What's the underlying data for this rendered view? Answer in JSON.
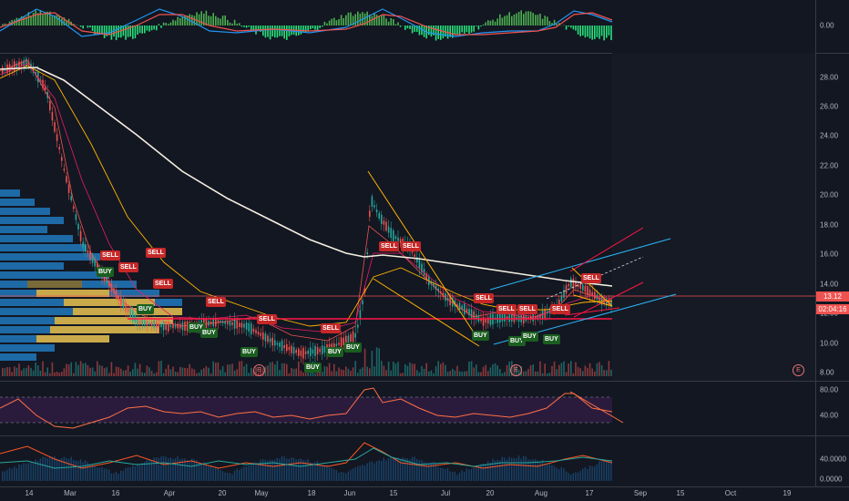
{
  "macd_pane": {
    "axis_label": "0.00"
  },
  "price_pane": {
    "y_ticks": [
      "28.00",
      "26.00",
      "24.00",
      "22.00",
      "20.00",
      "18.00",
      "16.00",
      "14.00",
      "12.00",
      "10.00",
      "8.00"
    ],
    "last_price": "13.12",
    "countdown": "02:04:16",
    "earnings_marker": "E"
  },
  "rsi_pane": {
    "y_ticks": [
      "80.00",
      "40.00"
    ]
  },
  "adx_pane": {
    "y_ticks": [
      "40.0000",
      "0.0000"
    ]
  },
  "x_axis": [
    "14",
    "Mar",
    "16",
    "Apr",
    "20",
    "May",
    "18",
    "Jun",
    "15",
    "Jul",
    "20",
    "Aug",
    "17",
    "Sep",
    "15",
    "Oct",
    "19"
  ],
  "signals": [
    {
      "type": "sell",
      "label": "SELL"
    },
    {
      "type": "buy",
      "label": "BUY"
    },
    {
      "type": "sell",
      "label": "SELL"
    },
    {
      "type": "sell",
      "label": "SELL"
    },
    {
      "type": "buy",
      "label": "BUY"
    },
    {
      "type": "sell",
      "label": "SELL"
    },
    {
      "type": "sell",
      "label": "SELL"
    },
    {
      "type": "buy",
      "label": "BUY"
    },
    {
      "type": "sell",
      "label": "SELL"
    },
    {
      "type": "buy",
      "label": "BUY"
    },
    {
      "type": "buy",
      "label": "BUY"
    },
    {
      "type": "sell",
      "label": "SELL"
    },
    {
      "type": "buy",
      "label": "BUY"
    },
    {
      "type": "buy",
      "label": "BUY"
    },
    {
      "type": "buy",
      "label": "BUY"
    },
    {
      "type": "sell",
      "label": "SELL"
    },
    {
      "type": "sell",
      "label": "SELL"
    },
    {
      "type": "buy",
      "label": "BUY"
    },
    {
      "type": "sell",
      "label": "SELL"
    },
    {
      "type": "sell",
      "label": "SELL"
    },
    {
      "type": "sell",
      "label": "SELL"
    },
    {
      "type": "buy",
      "label": "BUY"
    },
    {
      "type": "buy",
      "label": "BUY"
    },
    {
      "type": "buy",
      "label": "BUY"
    },
    {
      "type": "sell",
      "label": "SELL"
    },
    {
      "type": "sell",
      "label": "SELL"
    }
  ],
  "colors": {
    "background": "#131722",
    "up": "#26a69a",
    "down": "#ef5350",
    "ma200": "#f5f0e1",
    "resistance": "#ff1744",
    "channel": "#29b6f6",
    "rsi": "#ff7043",
    "adx": "#ff5722"
  }
}
